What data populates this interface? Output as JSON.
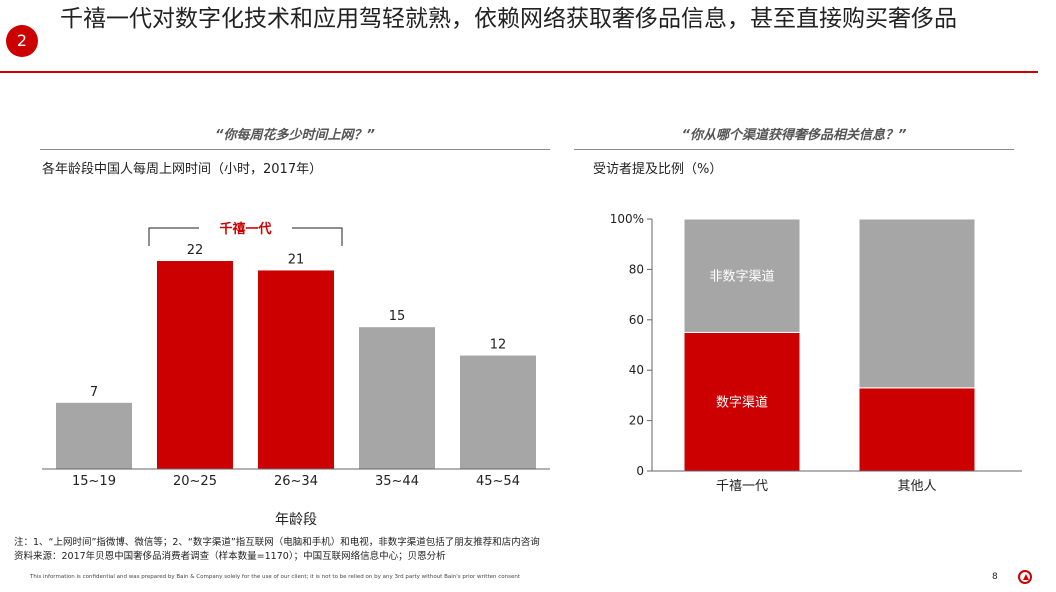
{
  "slide": {
    "number": "2",
    "title": "千禧一代对数字化技术和应用驾轻就熟，依赖网络获取奢侈品信息，甚至直接购买奢侈品"
  },
  "left_panel": {
    "question": "“你每周花多少时间上网？”",
    "subtitle": "各年龄段中国人每周上网时间（小时，2017年）",
    "bracket_label": "千禧一代",
    "xlabel": "年龄段"
  },
  "right_panel": {
    "question": "“你从哪个渠道获得奢侈品相关信息？”",
    "subtitle": "受访者提及比例（%）"
  },
  "chart_data": [
    {
      "type": "bar",
      "categories": [
        "15~19",
        "20~25",
        "26~34",
        "35~44",
        "45~54"
      ],
      "values": [
        7,
        22,
        21,
        15,
        12
      ],
      "highlight": [
        false,
        true,
        true,
        false,
        false
      ],
      "colors": {
        "highlight": "#cc0000",
        "normal": "#a6a6a6"
      },
      "title": "各年龄段中国人每周上网时间（小时，2017年）",
      "xlabel": "年龄段",
      "ylabel": "",
      "ylim": [
        0,
        22
      ],
      "annotation": "千禧一代"
    },
    {
      "type": "bar",
      "stacked": true,
      "categories": [
        "千禧一代",
        "其他人"
      ],
      "series": [
        {
          "name": "数字渠道",
          "values": [
            55,
            33
          ],
          "color": "#cc0000"
        },
        {
          "name": "非数字渠道",
          "values": [
            45,
            67
          ],
          "color": "#a6a6a6"
        }
      ],
      "series_labels_on_bar": {
        "数字渠道": "数字渠道",
        "非数字渠道": "非数字渠道"
      },
      "title": "受访者提及比例（%）",
      "xlabel": "",
      "ylabel": "",
      "ylim": [
        0,
        100
      ],
      "yticks": [
        "0",
        "20",
        "40",
        "60",
        "80",
        "100%"
      ]
    }
  ],
  "footer": {
    "note_line1": "注：1、“上网时间”指微博、微信等；2、“数字渠道”指互联网（电脑和手机）和电视，非数字渠道包括了朋友推荐和店内咨询",
    "note_line2": "资料来源：2017年贝恩中国奢侈品消费者调查（样本数量=1170）；中国互联网络信息中心；贝恩分析",
    "confidential": "This information is confidential and was prepared by Bain & Company solely for the use of our client; it is not to be relied on by any 3rd party without Bain's prior written consent",
    "page": "8"
  }
}
